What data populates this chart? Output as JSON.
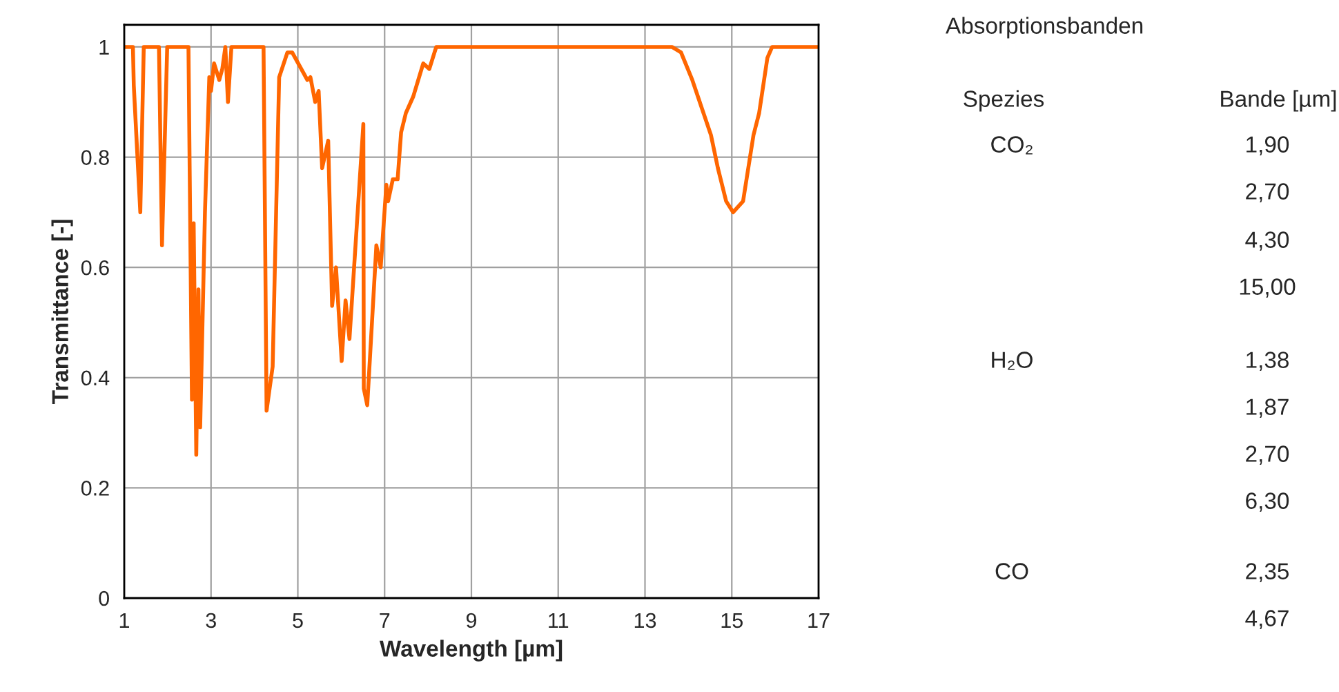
{
  "chart_data": {
    "type": "line",
    "xlabel": "Wavelength [µm]",
    "ylabel": "Transmittance [-]",
    "series": [
      {
        "color": "#ff6600",
        "x": [
          1,
          1.2,
          1.22,
          1.37,
          1.45,
          1.8,
          1.87,
          1.99,
          2.48,
          2.56,
          2.6,
          2.66,
          2.71,
          2.75,
          2.86,
          2.96,
          3.0,
          3.07,
          3.19,
          3.26,
          3.33,
          3.39,
          3.47,
          4.21,
          4.28,
          4.42,
          4.57,
          4.76,
          4.87,
          5.08,
          5.22,
          5.29,
          5.4,
          5.48,
          5.56,
          5.7,
          5.79,
          5.88,
          6.01,
          6.1,
          6.19,
          6.51,
          6.52,
          6.6,
          6.81,
          6.91,
          7.04,
          7.08,
          7.19,
          7.3,
          7.38,
          7.49,
          7.66,
          7.89,
          8.03,
          8.19,
          13.62,
          13.83,
          14.09,
          14.52,
          14.68,
          14.87,
          15.03,
          15.26,
          15.5,
          15.63,
          15.82,
          15.93,
          17
        ],
        "values": [
          1,
          1,
          0.93,
          0.7,
          1,
          1,
          0.64,
          1,
          1,
          0.36,
          0.68,
          0.26,
          0.56,
          0.31,
          0.7,
          0.945,
          0.92,
          0.97,
          0.94,
          0.96,
          1,
          0.9,
          1,
          1,
          0.34,
          0.42,
          0.945,
          0.99,
          0.99,
          0.96,
          0.94,
          0.945,
          0.9,
          0.92,
          0.78,
          0.83,
          0.53,
          0.6,
          0.43,
          0.54,
          0.47,
          0.86,
          0.38,
          0.35,
          0.64,
          0.6,
          0.75,
          0.72,
          0.76,
          0.76,
          0.845,
          0.88,
          0.91,
          0.97,
          0.96,
          1,
          1,
          0.99,
          0.94,
          0.84,
          0.78,
          0.72,
          0.7,
          0.72,
          0.84,
          0.88,
          0.98,
          1,
          1
        ]
      }
    ],
    "xlim": [
      1,
      17
    ],
    "xticks": [
      1,
      3,
      5,
      7,
      9,
      11,
      13,
      15,
      17
    ],
    "ylim": [
      0,
      1.04
    ],
    "yticks": [
      0,
      0.2,
      0.4,
      0.6,
      0.8,
      1
    ],
    "grid": true,
    "marker": "none",
    "line_style": "solid",
    "annotations": [
      "Absorptionsbanden",
      "Spezies",
      "Bande [µm]",
      "CO₂",
      "1,90",
      "2,70",
      "4,30",
      "15,00",
      "H₂O",
      "1,38",
      "1,87",
      "2,70",
      "6,30",
      "CO",
      "2,35",
      "4,67"
    ]
  }
}
